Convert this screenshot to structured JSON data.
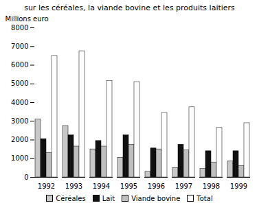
{
  "chart_data": {
    "type": "bar",
    "title": "sur les céréales, la viande bovine et les produits laitiers",
    "ylabel": "Millions euro",
    "categories": [
      "1992",
      "1993",
      "1994",
      "1995",
      "1996",
      "1997",
      "1998",
      "1999"
    ],
    "series": [
      {
        "name": "Céréales",
        "color": "#c8c8c8",
        "values": [
          3100,
          2750,
          1500,
          1050,
          300,
          500,
          450,
          850
        ]
      },
      {
        "name": "Lait",
        "color": "#111111",
        "values": [
          2050,
          2250,
          1950,
          2250,
          1550,
          1750,
          1400,
          1400
        ]
      },
      {
        "name": "Viande bovine",
        "color": "#c0c0c0",
        "values": [
          1300,
          1650,
          1650,
          1750,
          1500,
          1450,
          800,
          600
        ]
      },
      {
        "name": "Total",
        "color": "#ffffff",
        "values": [
          6500,
          6750,
          5150,
          5100,
          3450,
          3750,
          2650,
          2900
        ]
      }
    ],
    "ylim": [
      0,
      8000
    ],
    "yticks": [
      0,
      1000,
      2000,
      3000,
      4000,
      5000,
      6000,
      7000,
      8000
    ],
    "grid": false,
    "legend": "bottom"
  }
}
